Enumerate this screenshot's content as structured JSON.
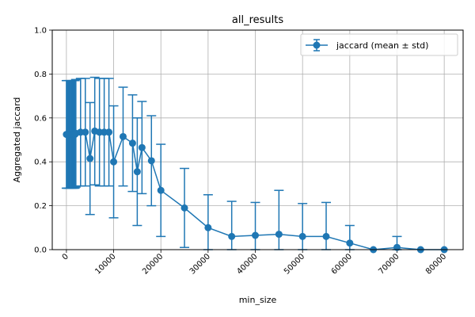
{
  "chart_data": {
    "type": "line",
    "title": "all_results",
    "xlabel": "min_size",
    "ylabel": "Aggregated jaccard",
    "xlim": [
      -3000,
      84000
    ],
    "ylim": [
      0,
      1.0
    ],
    "x_ticks": [
      0,
      10000,
      20000,
      30000,
      40000,
      50000,
      60000,
      70000,
      80000
    ],
    "y_ticks": [
      0.0,
      0.2,
      0.4,
      0.6,
      0.8,
      1.0
    ],
    "x_tick_labels": [
      "0",
      "10000",
      "20000",
      "30000",
      "40000",
      "50000",
      "60000",
      "70000",
      "80000"
    ],
    "y_tick_labels": [
      "0.0",
      "0.2",
      "0.4",
      "0.6",
      "0.8",
      "1.0"
    ],
    "grid": true,
    "legend_position": "top-right",
    "color": "#1f77b4",
    "series": [
      {
        "name": "jaccard (mean ± std)",
        "x": [
          0,
          200,
          400,
          600,
          800,
          1000,
          1200,
          1400,
          1600,
          1800,
          2000,
          3000,
          4000,
          5000,
          6000,
          7000,
          8000,
          9000,
          10000,
          12000,
          14000,
          15000,
          16000,
          18000,
          20000,
          25000,
          30000,
          35000,
          40000,
          45000,
          50000,
          55000,
          60000,
          65000,
          70000,
          75000,
          80000
        ],
        "y": [
          0.525,
          0.525,
          0.525,
          0.525,
          0.525,
          0.525,
          0.525,
          0.525,
          0.525,
          0.525,
          0.53,
          0.535,
          0.535,
          0.415,
          0.54,
          0.535,
          0.535,
          0.535,
          0.4,
          0.515,
          0.485,
          0.355,
          0.465,
          0.405,
          0.27,
          0.19,
          0.1,
          0.06,
          0.065,
          0.07,
          0.06,
          0.06,
          0.03,
          0.0,
          0.01,
          0.0,
          0.0
        ],
        "std": [
          0.245,
          0.245,
          0.245,
          0.245,
          0.245,
          0.245,
          0.245,
          0.245,
          0.245,
          0.245,
          0.245,
          0.245,
          0.245,
          0.255,
          0.245,
          0.245,
          0.245,
          0.245,
          0.255,
          0.225,
          0.22,
          0.245,
          0.21,
          0.205,
          0.21,
          0.18,
          0.15,
          0.16,
          0.15,
          0.2,
          0.15,
          0.155,
          0.08,
          0.0,
          0.05,
          0.0,
          0.0
        ]
      }
    ]
  }
}
